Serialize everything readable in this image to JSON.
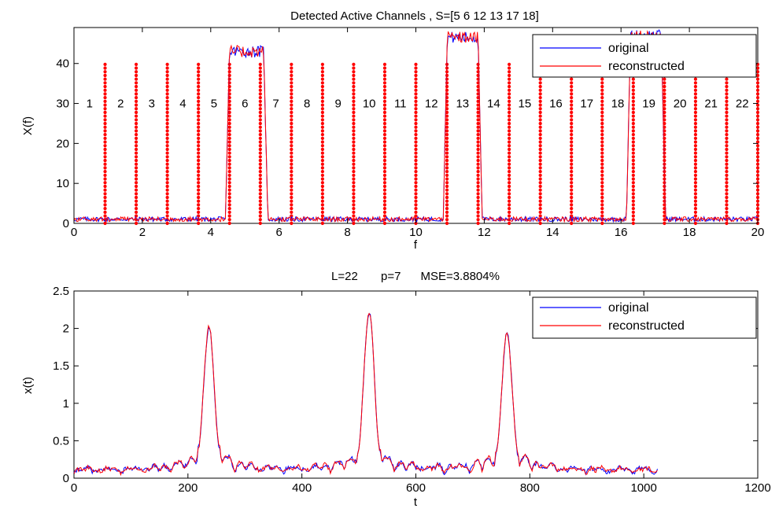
{
  "chart_data": [
    {
      "type": "line",
      "title": "Detected Active Channels , S=[5   6  12  13  17  18]",
      "xlabel": "f",
      "ylabel": "X(f)",
      "xlim": [
        0,
        20
      ],
      "ylim": [
        0,
        49
      ],
      "xticks": [
        0,
        2,
        4,
        6,
        8,
        10,
        12,
        14,
        16,
        18,
        20
      ],
      "yticks": [
        0,
        10,
        20,
        30,
        40
      ],
      "legend": "top-right",
      "legend_entries": [
        "original",
        "reconstructed"
      ],
      "series": [
        {
          "name": "original",
          "color": "#0000ff"
        },
        {
          "name": "reconstructed",
          "color": "#ff0000"
        }
      ],
      "active_bands": [
        {
          "from": 4.55,
          "to": 5.55,
          "level": 43
        },
        {
          "from": 10.92,
          "to": 11.82,
          "level": 46.5
        },
        {
          "from": 16.28,
          "to": 17.18,
          "level": 47
        }
      ],
      "baseline_level": 0.8,
      "channel_boundaries": [
        0.91,
        1.82,
        2.73,
        3.64,
        4.55,
        5.45,
        6.36,
        7.27,
        8.18,
        9.09,
        10.0,
        10.91,
        11.82,
        12.73,
        13.64,
        14.55,
        15.45,
        16.36,
        17.27,
        18.18,
        19.09,
        20.0
      ],
      "channel_marker_height": 40,
      "channel_marker_color": "#ff0000",
      "channel_labels": [
        "1",
        "2",
        "3",
        "4",
        "5",
        "6",
        "7",
        "8",
        "9",
        "10",
        "11",
        "12",
        "13",
        "14",
        "15",
        "16",
        "17",
        "18",
        "19",
        "20",
        "21",
        "22"
      ],
      "channel_label_y": 30
    },
    {
      "type": "line",
      "title": "L=22       p=7      MSE=3.8804%",
      "xlabel": "t",
      "ylabel": "x(t)",
      "xlim": [
        0,
        1200
      ],
      "ylim": [
        0,
        2.5
      ],
      "xticks": [
        0,
        200,
        400,
        600,
        800,
        1000,
        1200
      ],
      "yticks": [
        0,
        0.5,
        1,
        1.5,
        2,
        2.5
      ],
      "legend": "top-right",
      "legend_entries": [
        "original",
        "reconstructed"
      ],
      "series": [
        {
          "name": "original",
          "color": "#0000ff"
        },
        {
          "name": "reconstructed",
          "color": "#ff0000"
        }
      ],
      "peaks": [
        {
          "t": 237,
          "value": 1.92
        },
        {
          "t": 518,
          "value": 2.12
        },
        {
          "t": 760,
          "value": 1.82
        }
      ],
      "t_end": 1024
    }
  ]
}
